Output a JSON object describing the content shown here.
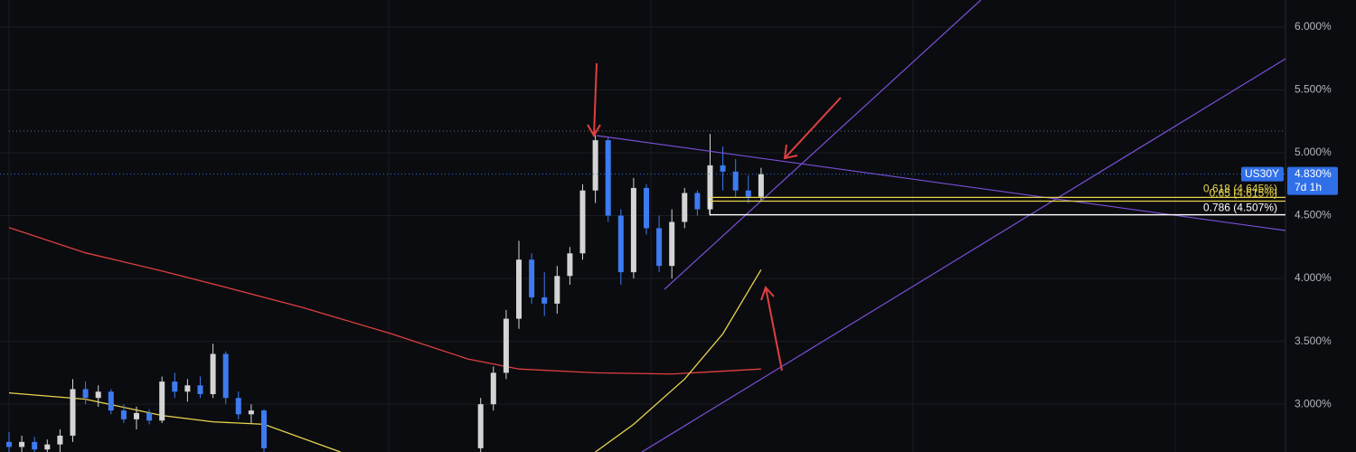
{
  "chart_data": {
    "type": "candlestick",
    "up_color": "#d4d4d4",
    "down_color": "#3d7bf0",
    "open": [
      2.7,
      2.66,
      2.7,
      2.64,
      2.68,
      2.75,
      3.12,
      3.05,
      3.1,
      2.95,
      2.88,
      2.93,
      2.87,
      3.18,
      3.1,
      3.15,
      3.08,
      3.4,
      3.05,
      2.92,
      2.95,
      null,
      null,
      null,
      null,
      null,
      null,
      null,
      null,
      null,
      null,
      null,
      null,
      null,
      null,
      null,
      null,
      2.65,
      3.0,
      3.25,
      3.68,
      4.15,
      3.85,
      3.8,
      4.02,
      4.2,
      4.7,
      5.1,
      4.5,
      4.05,
      4.72,
      4.4,
      4.1,
      4.45,
      4.68,
      4.55,
      4.9,
      4.85,
      4.7,
      4.65
    ],
    "high": [
      2.78,
      2.75,
      2.74,
      2.72,
      2.8,
      3.2,
      3.18,
      3.15,
      3.12,
      3.0,
      2.98,
      2.96,
      3.22,
      3.25,
      3.2,
      3.22,
      3.48,
      3.42,
      3.1,
      3.0,
      2.96,
      null,
      null,
      null,
      null,
      null,
      null,
      null,
      null,
      null,
      null,
      null,
      null,
      null,
      null,
      null,
      null,
      3.05,
      3.3,
      3.75,
      4.3,
      4.2,
      4.05,
      4.1,
      4.25,
      4.75,
      5.14,
      5.12,
      4.55,
      4.8,
      4.75,
      4.5,
      4.55,
      4.72,
      4.7,
      5.15,
      5.05,
      4.95,
      4.82,
      4.88
    ],
    "low": [
      2.62,
      2.6,
      2.62,
      2.6,
      2.62,
      2.7,
      3.0,
      2.98,
      2.92,
      2.85,
      2.8,
      2.84,
      2.85,
      3.05,
      3.02,
      3.05,
      3.05,
      3.0,
      2.88,
      2.85,
      2.62,
      null,
      null,
      null,
      null,
      null,
      null,
      null,
      null,
      null,
      null,
      null,
      null,
      null,
      null,
      null,
      null,
      2.62,
      2.95,
      3.2,
      3.6,
      3.8,
      3.7,
      3.72,
      3.95,
      4.15,
      4.6,
      4.45,
      3.95,
      4.0,
      4.35,
      4.05,
      4.0,
      4.4,
      4.5,
      4.5,
      4.7,
      4.65,
      4.6,
      4.62
    ],
    "close": [
      2.66,
      2.7,
      2.64,
      2.68,
      2.75,
      3.12,
      3.05,
      3.1,
      2.95,
      2.88,
      2.93,
      2.87,
      3.18,
      3.1,
      3.15,
      3.08,
      3.4,
      3.05,
      2.92,
      2.95,
      2.65,
      null,
      null,
      null,
      null,
      null,
      null,
      null,
      null,
      null,
      null,
      null,
      null,
      null,
      null,
      null,
      null,
      3.0,
      3.25,
      3.68,
      4.15,
      3.85,
      3.8,
      4.02,
      4.2,
      4.7,
      5.1,
      4.5,
      4.05,
      4.72,
      4.4,
      4.1,
      4.45,
      4.68,
      4.55,
      4.9,
      4.85,
      4.7,
      4.65,
      4.83
    ],
    "lines": [
      {
        "color": "#e0403f",
        "x": [
          0,
          6,
          12,
          17,
          23,
          30,
          36,
          40,
          46,
          52,
          59
        ],
        "values": [
          4.405,
          4.204,
          4.06,
          3.93,
          3.77,
          3.56,
          3.36,
          3.28,
          3.25,
          3.24,
          3.28
        ]
      },
      {
        "color": "#e8d44d",
        "x": [
          0,
          6,
          12,
          16,
          20,
          26,
          36,
          46,
          49,
          53,
          56,
          59
        ],
        "values": [
          3.09,
          3.04,
          2.91,
          2.86,
          2.84,
          2.62,
          null,
          2.62,
          2.84,
          3.2,
          3.56,
          4.07
        ]
      }
    ],
    "ylim": [
      2.62,
      6.215
    ],
    "yticks": [
      {
        "value": 3.0,
        "label": "3.000%"
      },
      {
        "value": 3.5,
        "label": "3.500%"
      },
      {
        "value": 4.0,
        "label": "4.000%"
      },
      {
        "value": 4.5,
        "label": "4.500%"
      },
      {
        "value": 5.0,
        "label": "5.000%"
      },
      {
        "value": 5.5,
        "label": "5.500%"
      },
      {
        "value": 6.0,
        "label": "6.000%"
      }
    ],
    "grid": true,
    "fib_levels": [
      {
        "label": "0.618 (4.645%)",
        "value": 4.645,
        "color": "#e8d44d"
      },
      {
        "label": "0.65 (4.615%)",
        "value": 4.615,
        "color": "#e8d44d"
      },
      {
        "label": "0.786 (4.507%)",
        "value": 4.507,
        "color": "#ffffff"
      }
    ],
    "last_price": {
      "symbol": "US30Y",
      "value": 4.83,
      "label": "4.830%",
      "countdown": "7d 1h",
      "color": "#2f6fe8"
    }
  }
}
